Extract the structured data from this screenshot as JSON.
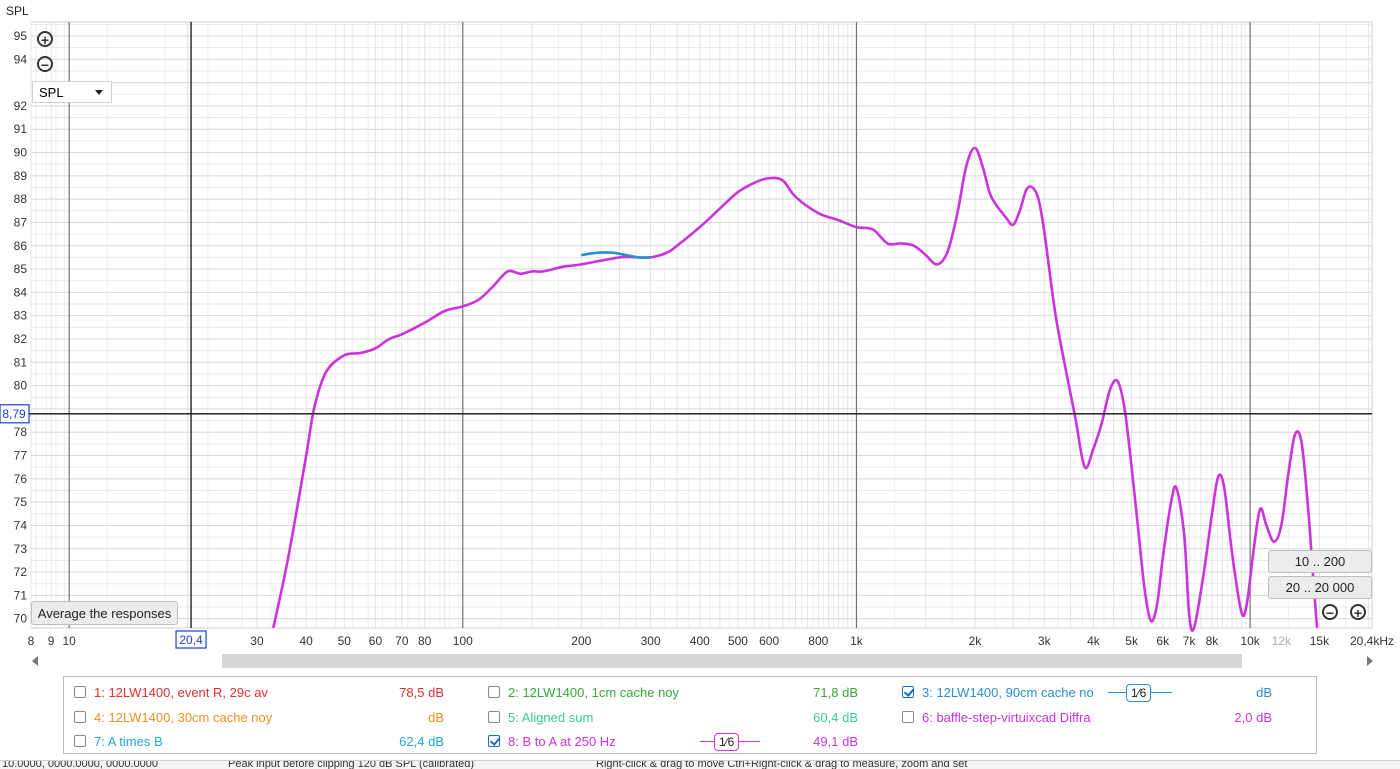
{
  "chart_data": {
    "type": "line",
    "title": "",
    "ylabel": "SPL",
    "xunit": "kHz",
    "xscale": "log",
    "xlim": [
      8,
      20400
    ],
    "ylim": [
      69.6,
      95.6
    ],
    "y_ticks": [
      70,
      71,
      72,
      73,
      74,
      75,
      76,
      77,
      78,
      80,
      81,
      82,
      83,
      84,
      85,
      86,
      87,
      88,
      89,
      90,
      91,
      92,
      94,
      95
    ],
    "x_ticks": [
      {
        "f": 8,
        "label": "8"
      },
      {
        "f": 9,
        "label": "9"
      },
      {
        "f": 10,
        "label": "10"
      },
      {
        "f": 30,
        "label": "30"
      },
      {
        "f": 40,
        "label": "40"
      },
      {
        "f": 50,
        "label": "50"
      },
      {
        "f": 60,
        "label": "60"
      },
      {
        "f": 70,
        "label": "70"
      },
      {
        "f": 80,
        "label": "80"
      },
      {
        "f": 100,
        "label": "100"
      },
      {
        "f": 200,
        "label": "200"
      },
      {
        "f": 300,
        "label": "300"
      },
      {
        "f": 400,
        "label": "400"
      },
      {
        "f": 500,
        "label": "500"
      },
      {
        "f": 600,
        "label": "600"
      },
      {
        "f": 800,
        "label": "800"
      },
      {
        "f": 1000,
        "label": "1k"
      },
      {
        "f": 2000,
        "label": "2k"
      },
      {
        "f": 3000,
        "label": "3k"
      },
      {
        "f": 4000,
        "label": "4k"
      },
      {
        "f": 5000,
        "label": "5k"
      },
      {
        "f": 6000,
        "label": "6k"
      },
      {
        "f": 7000,
        "label": "7k"
      },
      {
        "f": 8000,
        "label": "8k"
      },
      {
        "f": 10000,
        "label": "10k"
      },
      {
        "f": 12000,
        "label": "12k",
        "light": true
      },
      {
        "f": 15000,
        "label": "15k"
      },
      {
        "f": 20400,
        "label": "20,4kHz"
      }
    ],
    "cursor": {
      "x": 20.4,
      "x_label": "20,4",
      "y": 78.79,
      "y_label": "8,79"
    },
    "series": [
      {
        "name": "8: B to A at 250 Hz",
        "color": "#cc33dd",
        "points": [
          [
            33,
            69.6
          ],
          [
            36,
            72.6
          ],
          [
            40,
            77.0
          ],
          [
            42,
            79.1
          ],
          [
            45,
            80.6
          ],
          [
            50,
            81.3
          ],
          [
            55,
            81.4
          ],
          [
            60,
            81.6
          ],
          [
            65,
            82.0
          ],
          [
            70,
            82.2
          ],
          [
            80,
            82.7
          ],
          [
            90,
            83.2
          ],
          [
            100,
            83.4
          ],
          [
            110,
            83.7
          ],
          [
            120,
            84.3
          ],
          [
            130,
            84.9
          ],
          [
            140,
            84.8
          ],
          [
            150,
            84.9
          ],
          [
            160,
            84.9
          ],
          [
            180,
            85.1
          ],
          [
            200,
            85.2
          ],
          [
            250,
            85.5
          ],
          [
            280,
            85.5
          ],
          [
            300,
            85.5
          ],
          [
            330,
            85.7
          ],
          [
            350,
            86.0
          ],
          [
            400,
            86.8
          ],
          [
            450,
            87.6
          ],
          [
            500,
            88.3
          ],
          [
            550,
            88.7
          ],
          [
            600,
            88.9
          ],
          [
            650,
            88.8
          ],
          [
            700,
            88.1
          ],
          [
            800,
            87.4
          ],
          [
            900,
            87.1
          ],
          [
            1000,
            86.8
          ],
          [
            1100,
            86.7
          ],
          [
            1200,
            86.1
          ],
          [
            1300,
            86.1
          ],
          [
            1400,
            86.0
          ],
          [
            1500,
            85.6
          ],
          [
            1600,
            85.2
          ],
          [
            1700,
            85.7
          ],
          [
            1800,
            87.3
          ],
          [
            1900,
            89.4
          ],
          [
            2000,
            90.2
          ],
          [
            2100,
            89.3
          ],
          [
            2200,
            88.1
          ],
          [
            2400,
            87.2
          ],
          [
            2500,
            86.9
          ],
          [
            2600,
            87.5
          ],
          [
            2700,
            88.4
          ],
          [
            2800,
            88.5
          ],
          [
            2900,
            88.0
          ],
          [
            3000,
            86.6
          ],
          [
            3200,
            83.1
          ],
          [
            3400,
            80.7
          ],
          [
            3600,
            78.6
          ],
          [
            3800,
            76.5
          ],
          [
            4000,
            77.3
          ],
          [
            4200,
            78.4
          ],
          [
            4400,
            79.8
          ],
          [
            4600,
            80.2
          ],
          [
            4800,
            79.0
          ],
          [
            5000,
            76.5
          ],
          [
            5200,
            73.8
          ],
          [
            5400,
            71.2
          ],
          [
            5600,
            69.9
          ],
          [
            5800,
            70.6
          ],
          [
            6000,
            72.6
          ],
          [
            6300,
            75.0
          ],
          [
            6500,
            75.6
          ],
          [
            6800,
            73.6
          ],
          [
            7000,
            70.2
          ],
          [
            7200,
            69.6
          ],
          [
            7600,
            71.8
          ],
          [
            8000,
            74.5
          ],
          [
            8300,
            76.1
          ],
          [
            8600,
            75.6
          ],
          [
            9000,
            72.8
          ],
          [
            9500,
            70.3
          ],
          [
            9800,
            70.6
          ],
          [
            10200,
            72.9
          ],
          [
            10600,
            74.7
          ],
          [
            11000,
            74.0
          ],
          [
            11500,
            73.3
          ],
          [
            12000,
            74.0
          ],
          [
            12500,
            76.2
          ],
          [
            13000,
            77.9
          ],
          [
            13500,
            77.6
          ],
          [
            14000,
            75.0
          ],
          [
            14500,
            71.5
          ],
          [
            14800,
            69.6
          ]
        ]
      },
      {
        "name": "3: 12LW1400, 90cm cache no",
        "color": "#2a8fcf",
        "points": [
          [
            200,
            85.6
          ],
          [
            220,
            85.7
          ],
          [
            240,
            85.7
          ],
          [
            260,
            85.6
          ],
          [
            280,
            85.5
          ],
          [
            300,
            85.5
          ]
        ]
      }
    ]
  },
  "controls": {
    "y_axis_label": "SPL",
    "zoom_in_label": "+",
    "zoom_out_label": "−",
    "dropdown_value": "SPL",
    "average_button": "Average the responses",
    "range_btn_1": "10 .. 200",
    "range_btn_2": "20 .. 20 000"
  },
  "legend": {
    "items": [
      {
        "label": "1: 12LW1400, event R, 29c av",
        "value": "78,5 dB",
        "color": "#e03030",
        "checked": false
      },
      {
        "label": "2: 12LW1400, 1cm cache noy",
        "value": "71,8 dB",
        "color": "#3aa83a",
        "checked": false
      },
      {
        "label": "3: 12LW1400, 90cm cache no",
        "value": "dB",
        "color": "#2a8fcf",
        "checked": true,
        "smoothing": "1⁄6"
      },
      {
        "label": "4: 12LW1400, 30cm cache noy",
        "value": "dB",
        "color": "#f09020",
        "checked": false
      },
      {
        "label": "5: Aligned sum",
        "value": "60,4 dB",
        "color": "#3cc8a0",
        "checked": false
      },
      {
        "label": "6: baffle-step-virtuixcad Diffra",
        "value": "2,0 dB",
        "color": "#cc33dd",
        "checked": false
      },
      {
        "label": "7: A times B",
        "value": "62,4 dB",
        "color": "#20a8d8",
        "checked": false
      },
      {
        "label": "8: B to A at 250 Hz",
        "value": "49,1 dB",
        "color": "#cc33dd",
        "checked": true,
        "smoothing": "1⁄6"
      }
    ]
  },
  "status": {
    "part1": "10.0000, 0000.0000, 0000.0000",
    "part2": "Peak input before clipping 120 dB SPL (calibrated)",
    "part3": "Right-click & drag to move    Ctrl+Right-click & drag to measure, zoom and set"
  }
}
